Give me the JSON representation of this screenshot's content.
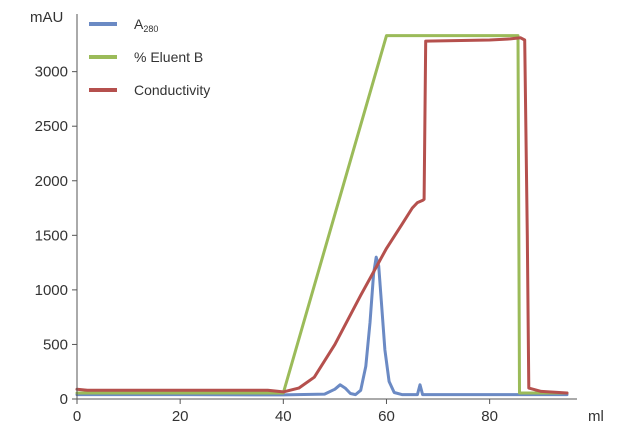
{
  "chart_data": {
    "type": "line",
    "ylabel": "mAU",
    "xlabel": "ml",
    "xlim": [
      0,
      95
    ],
    "ylim": [
      0,
      3400
    ],
    "x_ticks": [
      0,
      20,
      40,
      60,
      80
    ],
    "y_ticks": [
      0,
      500,
      1000,
      1500,
      2000,
      2500,
      3000
    ],
    "grid": false,
    "legend_position": "top-left",
    "series": [
      {
        "name": "A",
        "name_sub": "280",
        "color": "#6b8ac4",
        "points": [
          [
            0,
            40
          ],
          [
            20,
            40
          ],
          [
            40,
            38
          ],
          [
            48,
            45
          ],
          [
            50,
            90
          ],
          [
            51,
            130
          ],
          [
            52,
            100
          ],
          [
            53,
            50
          ],
          [
            54,
            40
          ],
          [
            55,
            80
          ],
          [
            56,
            300
          ],
          [
            56.8,
            700
          ],
          [
            57.5,
            1150
          ],
          [
            58,
            1300
          ],
          [
            58.5,
            1220
          ],
          [
            59,
            900
          ],
          [
            59.7,
            450
          ],
          [
            60.5,
            160
          ],
          [
            61.5,
            60
          ],
          [
            63,
            40
          ],
          [
            66,
            40
          ],
          [
            66.5,
            130
          ],
          [
            67,
            40
          ],
          [
            70,
            40
          ],
          [
            85,
            40
          ],
          [
            95,
            40
          ]
        ]
      },
      {
        "name": "% Eluent B",
        "color": "#9bbb59",
        "points": [
          [
            0,
            55
          ],
          [
            40,
            55
          ],
          [
            60,
            3330
          ],
          [
            85.5,
            3330
          ],
          [
            85.8,
            55
          ],
          [
            95,
            55
          ]
        ]
      },
      {
        "name": "Conductivity",
        "color": "#b5504d",
        "points": [
          [
            0,
            90
          ],
          [
            2,
            80
          ],
          [
            37,
            80
          ],
          [
            40,
            65
          ],
          [
            43,
            100
          ],
          [
            46,
            200
          ],
          [
            50,
            500
          ],
          [
            55,
            950
          ],
          [
            60,
            1380
          ],
          [
            63,
            1600
          ],
          [
            65,
            1750
          ],
          [
            66,
            1800
          ],
          [
            67,
            1820
          ],
          [
            67.3,
            1830
          ],
          [
            67.6,
            3280
          ],
          [
            80,
            3290
          ],
          [
            84,
            3300
          ],
          [
            86,
            3310
          ],
          [
            86.8,
            3290
          ],
          [
            87.3,
            1500
          ],
          [
            87.6,
            100
          ],
          [
            90,
            70
          ],
          [
            95,
            55
          ]
        ]
      }
    ]
  }
}
